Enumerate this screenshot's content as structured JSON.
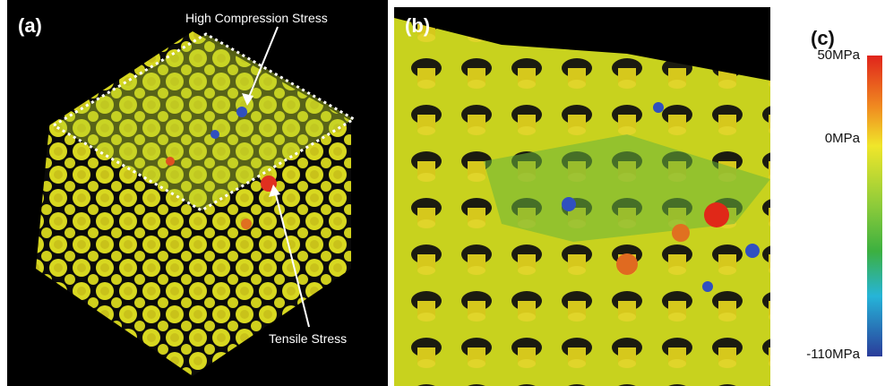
{
  "panels": [
    {
      "label": "(a)",
      "annotations": [
        "High Compression Stress",
        "Tensile Stress"
      ]
    },
    {
      "label": "(b)"
    },
    {
      "label": "(c)",
      "colorbar_labels": [
        "50MPa",
        "0MPa",
        "-110MPa"
      ]
    }
  ]
}
